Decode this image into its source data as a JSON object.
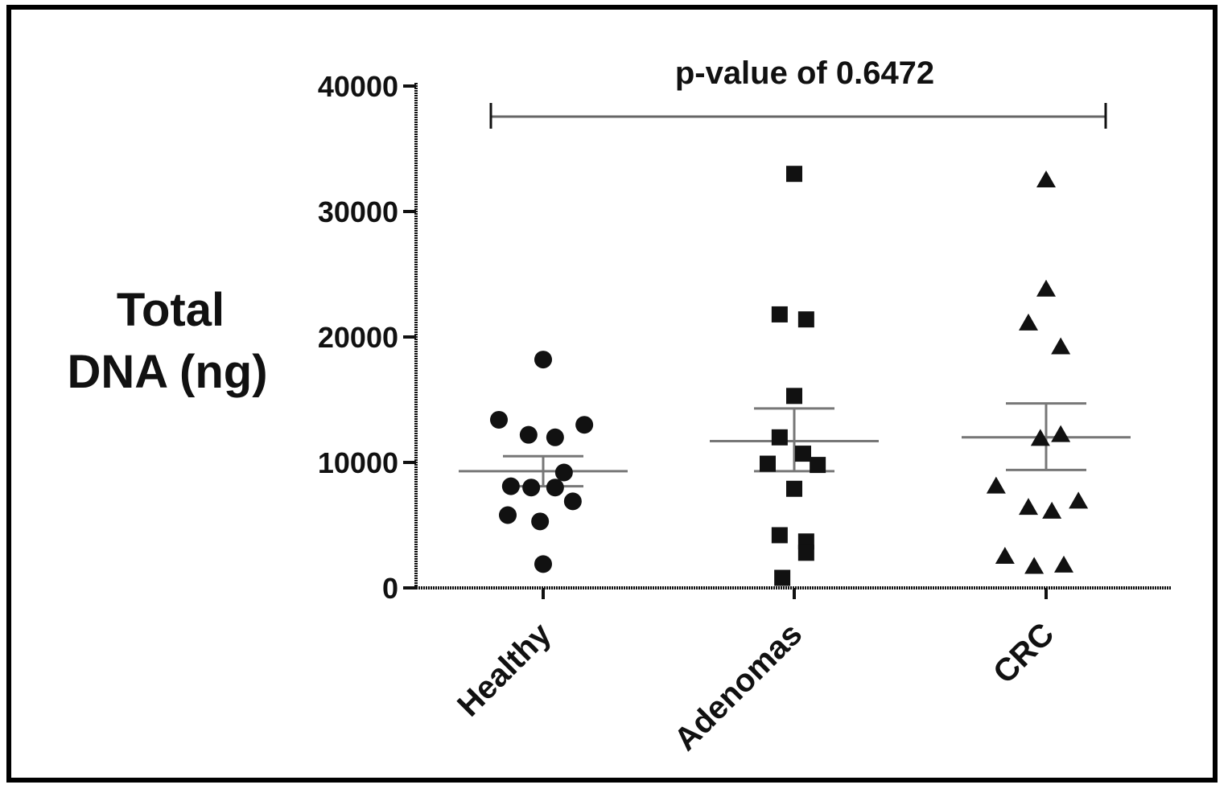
{
  "chart_data": {
    "type": "scatter",
    "ylabel_lines": [
      "Total",
      "DNA (ng)"
    ],
    "ylim": [
      0,
      40000
    ],
    "yticks": [
      0,
      10000,
      20000,
      30000,
      40000
    ],
    "categories": [
      "Healthy",
      "Adenomas",
      "CRC"
    ],
    "annotation": "p-value of 0.6472",
    "series": [
      {
        "name": "Healthy",
        "marker": "circle",
        "mean": 9300,
        "sem_low": 8100,
        "sem_high": 10500,
        "points": [
          {
            "offset": 0,
            "y": 18200
          },
          {
            "offset": -1.0,
            "y": 13400
          },
          {
            "offset": 0.93,
            "y": 13000
          },
          {
            "offset": -0.33,
            "y": 12200
          },
          {
            "offset": 0.27,
            "y": 12000
          },
          {
            "offset": 0.47,
            "y": 9200
          },
          {
            "offset": -0.73,
            "y": 8100
          },
          {
            "offset": -0.27,
            "y": 8000
          },
          {
            "offset": 0.27,
            "y": 8000
          },
          {
            "offset": 0.67,
            "y": 6900
          },
          {
            "offset": -0.8,
            "y": 5800
          },
          {
            "offset": -0.07,
            "y": 5300
          },
          {
            "offset": 0,
            "y": 1900
          }
        ]
      },
      {
        "name": "Adenomas",
        "marker": "square",
        "mean": 11700,
        "sem_low": 9300,
        "sem_high": 14300,
        "points": [
          {
            "offset": 0,
            "y": 33000
          },
          {
            "offset": -0.33,
            "y": 21800
          },
          {
            "offset": 0.27,
            "y": 21400
          },
          {
            "offset": 0,
            "y": 15300
          },
          {
            "offset": -0.33,
            "y": 12000
          },
          {
            "offset": 0.2,
            "y": 10700
          },
          {
            "offset": -0.6,
            "y": 9900
          },
          {
            "offset": 0.53,
            "y": 9800
          },
          {
            "offset": 0,
            "y": 7900
          },
          {
            "offset": -0.33,
            "y": 4200
          },
          {
            "offset": 0.27,
            "y": 3700
          },
          {
            "offset": 0.27,
            "y": 2800
          },
          {
            "offset": -0.27,
            "y": 800
          }
        ]
      },
      {
        "name": "CRC",
        "marker": "triangle",
        "mean": 12000,
        "sem_low": 9400,
        "sem_high": 14700,
        "points": [
          {
            "offset": 0,
            "y": 32500
          },
          {
            "offset": 0,
            "y": 23800
          },
          {
            "offset": -0.4,
            "y": 21100
          },
          {
            "offset": 0.33,
            "y": 19200
          },
          {
            "offset": -0.13,
            "y": 11900
          },
          {
            "offset": 0.33,
            "y": 12200
          },
          {
            "offset": -1.13,
            "y": 8100
          },
          {
            "offset": -0.4,
            "y": 6400
          },
          {
            "offset": 0.13,
            "y": 6100
          },
          {
            "offset": 0.73,
            "y": 6900
          },
          {
            "offset": -0.93,
            "y": 2500
          },
          {
            "offset": -0.27,
            "y": 1700
          },
          {
            "offset": 0.4,
            "y": 1800
          }
        ]
      }
    ]
  }
}
